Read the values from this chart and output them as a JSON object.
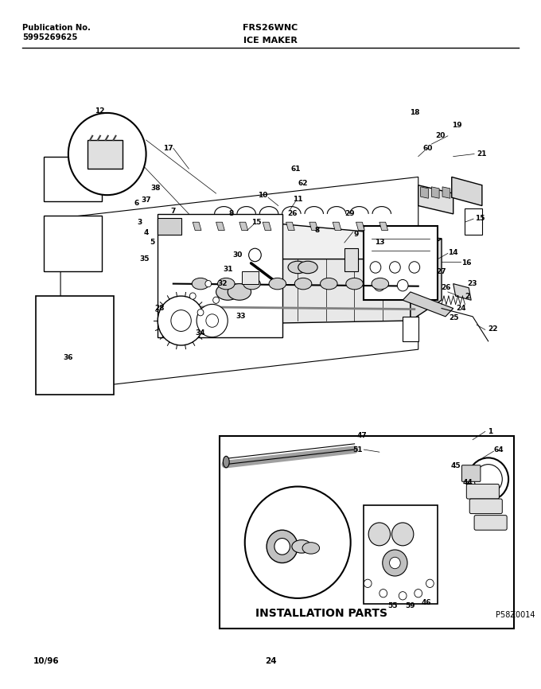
{
  "pub_label": "Publication No.",
  "pub_number": "5995269625",
  "model": "FRS26WNC",
  "section": "ICE MAKER",
  "footer_left": "10/96",
  "footer_center": "24",
  "install_parts_label": "INSTALLATION PARTS",
  "diagram_ref": "P58Z0014",
  "bg_color": "#ffffff",
  "text_color": "#000000",
  "fig_width": 6.8,
  "fig_height": 8.66,
  "dpi": 100
}
